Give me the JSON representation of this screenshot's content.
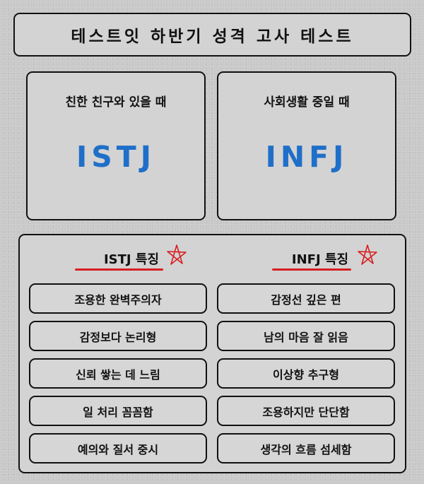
{
  "title": "테스트잇 하반기 성격 고사 테스트",
  "modes": [
    {
      "label": "친한 친구와 있을 때",
      "type": "ISTJ"
    },
    {
      "label": "사회생활 중일 때",
      "type": "INFJ"
    }
  ],
  "traits": {
    "left": {
      "heading": "ISTJ 특징",
      "items": [
        "조용한 완벽주의자",
        "감정보다 논리형",
        "신뢰 쌓는 데 느림",
        "일 처리 꼼꼼함",
        "예의와 질서 중시"
      ]
    },
    "right": {
      "heading": "INFJ 특징",
      "items": [
        "감정선 깊은 편",
        "남의 마음 잘 읽음",
        "이상향 추구형",
        "조용하지만 단단함",
        "생각의 흐름 섬세함"
      ]
    }
  },
  "colors": {
    "type_text": "#1f6fc9",
    "accent_red": "#d81e1e",
    "card_bg": "#d3d3d3",
    "page_bg": "#c9c9c9"
  },
  "icons": {
    "star": "hand-drawn-star-icon"
  }
}
